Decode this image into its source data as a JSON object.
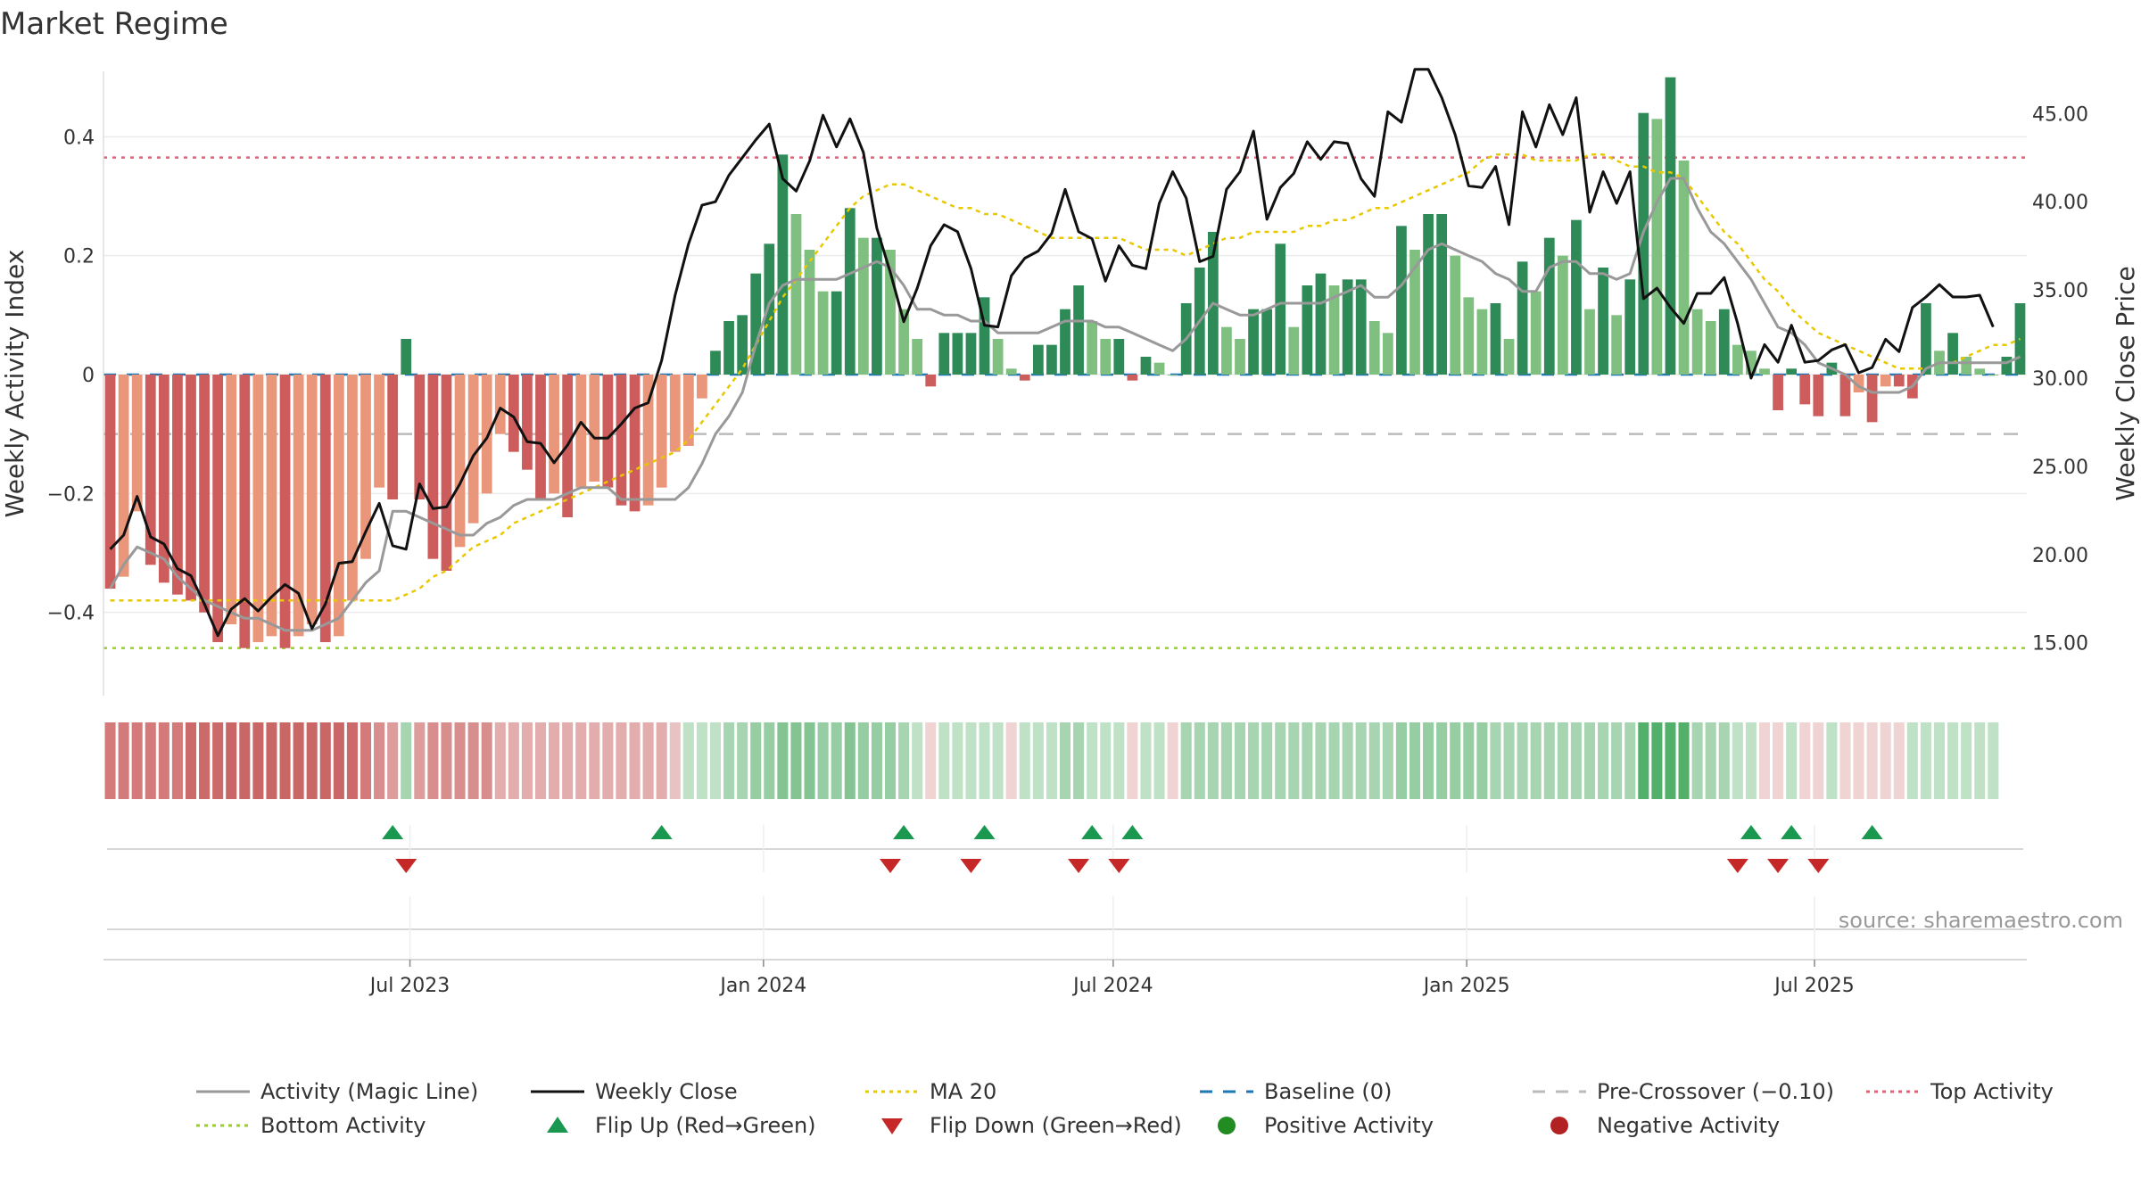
{
  "chart_data": {
    "type": "bar",
    "title": "Market Regime",
    "ylabel": "Weekly Activity Index",
    "y2label": "Weekly Close Price",
    "ylim": [
      -0.54,
      0.54
    ],
    "y2lim": [
      12.0,
      48.4
    ],
    "yticks": [
      0.4,
      0.2,
      0,
      -0.2,
      -0.4
    ],
    "ytick_labels": [
      "0.4",
      "0.2",
      "0",
      "−0.2",
      "−0.4"
    ],
    "y2ticks": [
      45,
      40,
      35,
      30,
      25,
      20,
      15
    ],
    "y2tick_labels": [
      "45.00",
      "40.00",
      "35.00",
      "30.00",
      "25.00",
      "20.00",
      "15.00"
    ],
    "x_start": "2023-01-26",
    "x_step_days": 7,
    "xticks": [
      {
        "date": "2023-07-01",
        "label": "Jul 2023"
      },
      {
        "date": "2024-01-01",
        "label": "Jan 2024"
      },
      {
        "date": "2024-07-01",
        "label": "Jul 2024"
      },
      {
        "date": "2025-01-01",
        "label": "Jan 2025"
      },
      {
        "date": "2025-07-01",
        "label": "Jul 2025"
      }
    ],
    "top_activity": 0.365,
    "bottom_activity": -0.46,
    "pre_crossover": -0.1,
    "baseline": 0,
    "activity": [
      -0.36,
      -0.34,
      -0.23,
      -0.32,
      -0.35,
      -0.37,
      -0.38,
      -0.4,
      -0.45,
      -0.42,
      -0.46,
      -0.45,
      -0.44,
      -0.46,
      -0.44,
      -0.42,
      -0.45,
      -0.44,
      -0.38,
      -0.31,
      -0.19,
      -0.21,
      0.06,
      -0.21,
      -0.31,
      -0.33,
      -0.29,
      -0.25,
      -0.2,
      -0.1,
      -0.13,
      -0.16,
      -0.21,
      -0.2,
      -0.24,
      -0.19,
      -0.18,
      -0.19,
      -0.22,
      -0.23,
      -0.22,
      -0.19,
      -0.13,
      -0.12,
      -0.04,
      0.04,
      0.09,
      0.1,
      0.17,
      0.22,
      0.37,
      0.27,
      0.21,
      0.14,
      0.14,
      0.28,
      0.23,
      0.23,
      0.21,
      0.11,
      0.06,
      -0.02,
      0.07,
      0.07,
      0.07,
      0.13,
      0.06,
      0.01,
      -0.01,
      0.05,
      0.05,
      0.11,
      0.15,
      0.09,
      0.06,
      0.06,
      -0.01,
      0.03,
      0.02,
      0.0,
      0.12,
      0.18,
      0.24,
      0.08,
      0.06,
      0.11,
      0.11,
      0.22,
      0.08,
      0.15,
      0.17,
      0.15,
      0.16,
      0.16,
      0.09,
      0.07,
      0.25,
      0.21,
      0.27,
      0.27,
      0.2,
      0.13,
      0.11,
      0.12,
      0.06,
      0.19,
      0.14,
      0.23,
      0.2,
      0.26,
      0.11,
      0.18,
      0.1,
      0.16,
      0.44,
      0.43,
      0.5,
      0.36,
      0.11,
      0.09,
      0.11,
      0.05,
      0.04,
      0.01,
      -0.06,
      0.01,
      -0.05,
      -0.07,
      0.02,
      -0.07,
      -0.03,
      -0.08,
      -0.02,
      -0.02,
      -0.04,
      0.12,
      0.04,
      0.07,
      0.03,
      0.01,
      0.0,
      0.03,
      0.12
    ],
    "magic_line": [
      -0.36,
      -0.32,
      -0.29,
      -0.3,
      -0.31,
      -0.34,
      -0.36,
      -0.38,
      -0.39,
      -0.4,
      -0.41,
      -0.41,
      -0.42,
      -0.43,
      -0.43,
      -0.43,
      -0.42,
      -0.41,
      -0.38,
      -0.35,
      -0.33,
      -0.23,
      -0.23,
      -0.24,
      -0.25,
      -0.26,
      -0.27,
      -0.27,
      -0.25,
      -0.24,
      -0.22,
      -0.21,
      -0.21,
      -0.21,
      -0.2,
      -0.19,
      -0.19,
      -0.19,
      -0.21,
      -0.21,
      -0.21,
      -0.21,
      -0.21,
      -0.19,
      -0.15,
      -0.1,
      -0.07,
      -0.03,
      0.05,
      0.12,
      0.15,
      0.16,
      0.16,
      0.16,
      0.16,
      0.17,
      0.18,
      0.19,
      0.18,
      0.15,
      0.11,
      0.11,
      0.1,
      0.1,
      0.09,
      0.09,
      0.07,
      0.07,
      0.07,
      0.07,
      0.08,
      0.09,
      0.09,
      0.09,
      0.08,
      0.08,
      0.07,
      0.06,
      0.05,
      0.04,
      0.06,
      0.09,
      0.12,
      0.11,
      0.1,
      0.1,
      0.11,
      0.12,
      0.12,
      0.12,
      0.12,
      0.13,
      0.14,
      0.15,
      0.13,
      0.13,
      0.15,
      0.18,
      0.21,
      0.22,
      0.21,
      0.2,
      0.19,
      0.17,
      0.16,
      0.14,
      0.14,
      0.18,
      0.19,
      0.19,
      0.17,
      0.17,
      0.16,
      0.17,
      0.24,
      0.29,
      0.33,
      0.33,
      0.28,
      0.24,
      0.22,
      0.19,
      0.16,
      0.12,
      0.08,
      0.07,
      0.05,
      0.02,
      0.01,
      0.0,
      -0.02,
      -0.03,
      -0.03,
      -0.03,
      -0.02,
      0.01,
      0.02,
      0.02,
      0.02,
      0.02,
      0.02,
      0.02,
      0.03
    ],
    "ma20": [
      -0.38,
      -0.38,
      -0.38,
      -0.38,
      -0.38,
      -0.38,
      -0.38,
      -0.38,
      -0.38,
      -0.38,
      -0.38,
      -0.38,
      -0.38,
      -0.38,
      -0.38,
      -0.38,
      -0.38,
      -0.38,
      -0.38,
      -0.38,
      -0.38,
      -0.38,
      -0.37,
      -0.36,
      -0.34,
      -0.33,
      -0.31,
      -0.29,
      -0.28,
      -0.27,
      -0.25,
      -0.24,
      -0.23,
      -0.22,
      -0.21,
      -0.2,
      -0.19,
      -0.18,
      -0.17,
      -0.16,
      -0.15,
      -0.14,
      -0.13,
      -0.11,
      -0.08,
      -0.05,
      -0.02,
      0.01,
      0.05,
      0.09,
      0.13,
      0.16,
      0.19,
      0.22,
      0.25,
      0.28,
      0.3,
      0.31,
      0.32,
      0.32,
      0.31,
      0.3,
      0.29,
      0.28,
      0.28,
      0.27,
      0.27,
      0.26,
      0.25,
      0.24,
      0.23,
      0.23,
      0.23,
      0.23,
      0.23,
      0.23,
      0.22,
      0.21,
      0.21,
      0.21,
      0.2,
      0.21,
      0.22,
      0.23,
      0.23,
      0.24,
      0.24,
      0.24,
      0.24,
      0.25,
      0.25,
      0.26,
      0.26,
      0.27,
      0.28,
      0.28,
      0.29,
      0.3,
      0.31,
      0.32,
      0.33,
      0.34,
      0.36,
      0.37,
      0.37,
      0.37,
      0.36,
      0.36,
      0.36,
      0.36,
      0.37,
      0.37,
      0.36,
      0.35,
      0.35,
      0.34,
      0.34,
      0.33,
      0.3,
      0.27,
      0.24,
      0.22,
      0.19,
      0.16,
      0.14,
      0.11,
      0.09,
      0.07,
      0.06,
      0.05,
      0.04,
      0.03,
      0.02,
      0.01,
      0.01,
      0.01,
      0.02,
      0.02,
      0.03,
      0.04,
      0.05,
      0.05,
      0.06
    ],
    "weekly_close": [
      20.3,
      21.1,
      23.3,
      21.0,
      20.6,
      19.2,
      18.8,
      17.2,
      15.4,
      16.9,
      17.5,
      16.8,
      17.6,
      18.3,
      17.8,
      15.8,
      17.2,
      19.5,
      19.6,
      21.3,
      22.9,
      20.5,
      20.3,
      24.0,
      22.6,
      22.7,
      24.0,
      25.6,
      26.6,
      28.3,
      27.8,
      26.4,
      26.3,
      25.2,
      26.2,
      27.5,
      26.6,
      26.6,
      27.4,
      28.3,
      28.6,
      31.0,
      34.7,
      37.6,
      39.8,
      40.0,
      41.5,
      42.5,
      43.5,
      44.4,
      41.3,
      40.6,
      42.3,
      44.9,
      43.1,
      44.7,
      42.8,
      38.5,
      36.0,
      33.2,
      35.1,
      37.5,
      38.7,
      38.3,
      36.2,
      33.0,
      32.9,
      35.8,
      36.8,
      37.2,
      38.2,
      40.7,
      38.3,
      37.9,
      35.5,
      37.5,
      36.4,
      36.2,
      39.9,
      41.7,
      40.2,
      36.6,
      36.9,
      40.7,
      41.7,
      44.0,
      39.0,
      40.8,
      41.6,
      43.4,
      42.4,
      43.4,
      43.3,
      41.3,
      40.3,
      45.1,
      44.5,
      47.5,
      47.5,
      45.9,
      43.8,
      40.9,
      40.8,
      42.0,
      38.7,
      45.1,
      43.1,
      45.5,
      43.8,
      45.9,
      39.4,
      41.7,
      39.9,
      41.7,
      34.5,
      35.1,
      34.0,
      33.1,
      34.8,
      34.8,
      35.7,
      33.1,
      30.0,
      31.9,
      30.9,
      33.0,
      30.9,
      31.0,
      31.6,
      31.9,
      30.3,
      30.6,
      32.2,
      31.5,
      34.0,
      34.6,
      35.3,
      34.6,
      34.6,
      34.7,
      32.9
    ],
    "status_strip": [
      "#d47a7a",
      "#d47a7a",
      "#d47a7a",
      "#d47a7a",
      "#d47a7a",
      "#d47a7a",
      "#cc6a6a",
      "#cc6a6a",
      "#cc6a6a",
      "#c96666",
      "#c96666",
      "#c96666",
      "#c96666",
      "#c96666",
      "#c96666",
      "#c96666",
      "#c96666",
      "#c96666",
      "#cc6a6a",
      "#d47a7a",
      "#d98e8e",
      "#de9d9d",
      "#a8d5b1",
      "#de9d9d",
      "#d98e8e",
      "#d98e8e",
      "#d98e8e",
      "#d98e8e",
      "#d98e8e",
      "#e3adad",
      "#e3adad",
      "#e3adad",
      "#e3adad",
      "#e3adad",
      "#e3adad",
      "#e3adad",
      "#e3adad",
      "#e3adad",
      "#e3adad",
      "#e3adad",
      "#e3adad",
      "#e3adad",
      "#e8c3c3",
      "#bfe2c6",
      "#bfe2c6",
      "#bfe2c6",
      "#a8d5b1",
      "#a8d5b1",
      "#96cda2",
      "#96cda2",
      "#84c493",
      "#84c493",
      "#84c493",
      "#96cda2",
      "#96cda2",
      "#84c493",
      "#96cda2",
      "#96cda2",
      "#96cda2",
      "#a8d5b1",
      "#bfe2c6",
      "#f0d3d3",
      "#bfe2c6",
      "#bfe2c6",
      "#bfe2c6",
      "#bfe2c6",
      "#bfe2c6",
      "#f0d3d3",
      "#bfe2c6",
      "#bfe2c6",
      "#bfe2c6",
      "#a8d5b1",
      "#a8d5b1",
      "#bfe2c6",
      "#bfe2c6",
      "#bfe2c6",
      "#f0d3d3",
      "#bfe2c6",
      "#bfe2c6",
      "#f0d3d3",
      "#a8d5b1",
      "#a8d5b1",
      "#a8d5b1",
      "#a8d5b1",
      "#a8d5b1",
      "#a8d5b1",
      "#a8d5b1",
      "#a8d5b1",
      "#a8d5b1",
      "#a8d5b1",
      "#a8d5b1",
      "#a8d5b1",
      "#a8d5b1",
      "#a8d5b1",
      "#a8d5b1",
      "#a8d5b1",
      "#96cda2",
      "#96cda2",
      "#96cda2",
      "#96cda2",
      "#96cda2",
      "#96cda2",
      "#96cda2",
      "#a8d5b1",
      "#a8d5b1",
      "#a8d5b1",
      "#a8d5b1",
      "#a8d5b1",
      "#a8d5b1",
      "#a8d5b1",
      "#a8d5b1",
      "#a8d5b1",
      "#a8d5b1",
      "#a8d5b1",
      "#52b06a",
      "#52b06a",
      "#52b06a",
      "#52b06a",
      "#a8d5b1",
      "#a8d5b1",
      "#a8d5b1",
      "#bfe2c6",
      "#bfe2c6",
      "#f0d3d3",
      "#f0d3d3",
      "#bfe2c6",
      "#f0d3d3",
      "#f0d3d3",
      "#bfe2c6",
      "#f0d3d3",
      "#f0d3d3",
      "#f0d3d3",
      "#f0d3d3",
      "#f0d3d3",
      "#bfe2c6",
      "#bfe2c6",
      "#bfe2c6",
      "#bfe2c6",
      "#bfe2c6",
      "#bfe2c6",
      "#bfe2c6"
    ],
    "flip_up": [
      21,
      41,
      59,
      65,
      73,
      76,
      122,
      125,
      131
    ],
    "flip_down": [
      22,
      58,
      64,
      72,
      75,
      121,
      124,
      127
    ],
    "source_label": "source: sharemaestro.com",
    "colors": {
      "bar_pos_strong": "#2e8b57",
      "bar_pos_weak": "#7fbf7f",
      "bar_neg_strong": "#cd5c5c",
      "bar_neg_weak": "#e9967a",
      "magic_line": "#999999",
      "weekly_close": "#111111",
      "ma20": "#e8c800",
      "baseline": "#1f77b4",
      "pre_crossover": "#bbbbbb",
      "top_activity": "#e06377",
      "bottom_activity": "#9acd32",
      "flip_up": "#1a9850",
      "flip_down": "#c62828",
      "positive_activity": "#228b22",
      "negative_activity": "#b22222"
    },
    "legend": [
      {
        "label": "Activity (Magic Line)",
        "kind": "line",
        "color": "#999999"
      },
      {
        "label": "Weekly Close",
        "kind": "line",
        "color": "#111111"
      },
      {
        "label": "MA 20",
        "kind": "dotted",
        "color": "#e8c800"
      },
      {
        "label": "Baseline (0)",
        "kind": "dashed",
        "color": "#1f77b4"
      },
      {
        "label": "Pre-Crossover (−0.10)",
        "kind": "dashed",
        "color": "#bbbbbb"
      },
      {
        "label": "Top Activity",
        "kind": "dotted",
        "color": "#e06377"
      },
      {
        "label": "Bottom Activity",
        "kind": "dotted",
        "color": "#9acd32"
      },
      {
        "label": "Flip Up (Red→Green)",
        "kind": "tri-up",
        "color": "#1a9850"
      },
      {
        "label": "Flip Down (Green→Red)",
        "kind": "tri-down",
        "color": "#c62828"
      },
      {
        "label": "Positive Activity",
        "kind": "dot",
        "color": "#228b22"
      },
      {
        "label": "Negative Activity",
        "kind": "dot",
        "color": "#b22222"
      }
    ]
  }
}
